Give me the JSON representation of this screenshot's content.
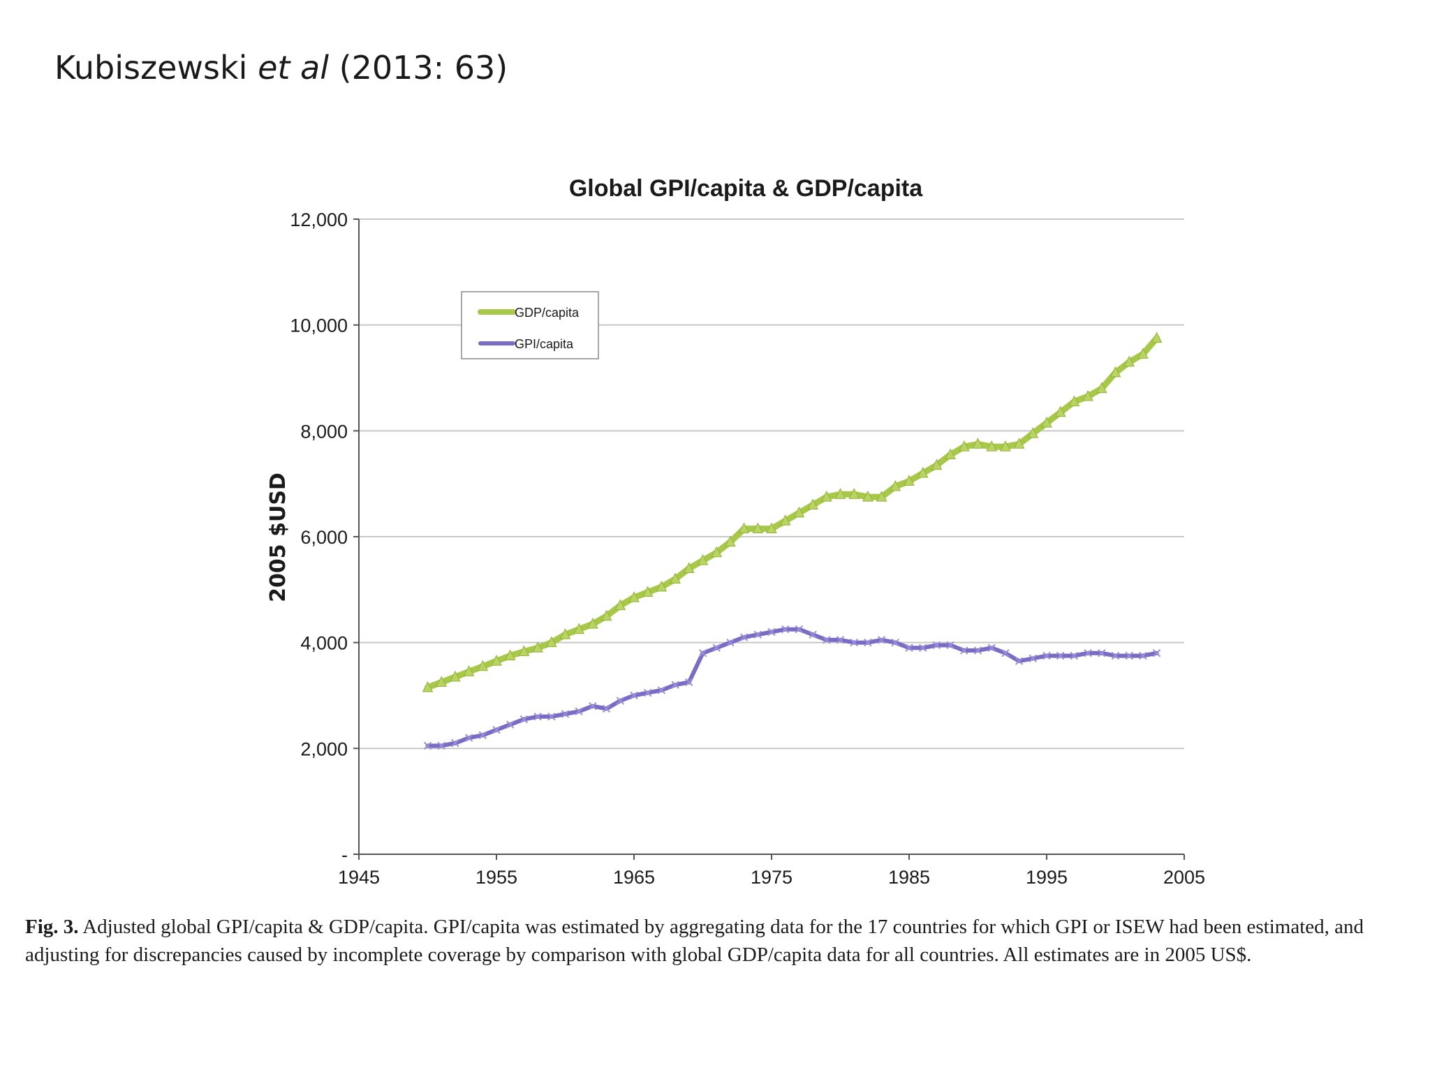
{
  "slide": {
    "author": "Kubiszewski",
    "etal": "et al",
    "citation": "(2013: 63)"
  },
  "caption": {
    "label": "Fig. 3.",
    "text": "Adjusted global GPI/capita & GDP/capita. GPI/capita was estimated by aggregating data for the 17 countries for which GPI or ISEW had been estimated, and adjusting for discrepancies caused by incomplete coverage by comparison with global GDP/capita data for all countries. All estimates are in 2005 US$."
  },
  "chart_data": {
    "type": "line",
    "title": "Global GPI/capita & GDP/capita",
    "xlabel": "",
    "ylabel": "2005 $USD",
    "xlim": [
      1945,
      2005
    ],
    "ylim": [
      0,
      12000
    ],
    "xticks": [
      1945,
      1955,
      1965,
      1975,
      1985,
      1995,
      2005
    ],
    "xtick_labels": [
      "1945",
      "1955",
      "1965",
      "1975",
      "1985",
      "1995",
      "2005"
    ],
    "yticks": [
      0,
      2000,
      4000,
      6000,
      8000,
      10000,
      12000
    ],
    "ytick_labels": [
      "-",
      "2,000",
      "4,000",
      "6,000",
      "8,000",
      "10,000",
      "12,000"
    ],
    "grid": true,
    "legend_position": "top-left",
    "series": [
      {
        "name": "GDP/capita",
        "color": "#a8c84a",
        "x": [
          1950,
          1951,
          1952,
          1953,
          1954,
          1955,
          1956,
          1957,
          1958,
          1959,
          1960,
          1961,
          1962,
          1963,
          1964,
          1965,
          1966,
          1967,
          1968,
          1969,
          1970,
          1971,
          1972,
          1973,
          1974,
          1975,
          1976,
          1977,
          1978,
          1979,
          1980,
          1981,
          1982,
          1983,
          1984,
          1985,
          1986,
          1987,
          1988,
          1989,
          1990,
          1991,
          1992,
          1993,
          1994,
          1995,
          1996,
          1997,
          1998,
          1999,
          2000,
          2001,
          2002,
          2003
        ],
        "values": [
          3150,
          3250,
          3350,
          3450,
          3550,
          3650,
          3750,
          3830,
          3900,
          4000,
          4150,
          4250,
          4350,
          4500,
          4700,
          4850,
          4950,
          5050,
          5200,
          5400,
          5550,
          5700,
          5900,
          6150,
          6150,
          6150,
          6300,
          6450,
          6600,
          6750,
          6800,
          6800,
          6750,
          6750,
          6950,
          7050,
          7200,
          7350,
          7550,
          7700,
          7750,
          7700,
          7700,
          7750,
          7950,
          8150,
          8350,
          8550,
          8650,
          8800,
          9100,
          9300,
          9450,
          9750
        ]
      },
      {
        "name": "GPI/capita",
        "color": "#7a6bc4",
        "x": [
          1950,
          1951,
          1952,
          1953,
          1954,
          1955,
          1956,
          1957,
          1958,
          1959,
          1960,
          1961,
          1962,
          1963,
          1964,
          1965,
          1966,
          1967,
          1968,
          1969,
          1970,
          1971,
          1972,
          1973,
          1974,
          1975,
          1976,
          1977,
          1978,
          1979,
          1980,
          1981,
          1982,
          1983,
          1984,
          1985,
          1986,
          1987,
          1988,
          1989,
          1990,
          1991,
          1992,
          1993,
          1994,
          1995,
          1996,
          1997,
          1998,
          1999,
          2000,
          2001,
          2002,
          2003
        ],
        "values": [
          2050,
          2050,
          2100,
          2200,
          2250,
          2350,
          2450,
          2550,
          2600,
          2600,
          2650,
          2700,
          2800,
          2750,
          2900,
          3000,
          3050,
          3100,
          3200,
          3250,
          3800,
          3900,
          4000,
          4100,
          4150,
          4200,
          4250,
          4250,
          4150,
          4050,
          4050,
          4000,
          4000,
          4050,
          4000,
          3900,
          3900,
          3950,
          3950,
          3850,
          3850,
          3900,
          3800,
          3650,
          3700,
          3750,
          3750,
          3750,
          3800,
          3800,
          3750,
          3750,
          3750,
          3800
        ]
      }
    ]
  }
}
